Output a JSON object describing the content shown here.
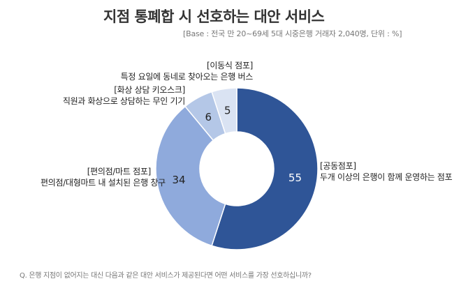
{
  "title": "지점 통폐합 시 선호하는 대안 서비스",
  "subtitle": "[Base : 전국 만 20~69세 5대 시중은행 거래자 2,040명, 단위 : %]",
  "question": "Q. 은행 지점이 없어지는 대신 다음과 같은 대안 서비스가 제공된다면 어떤 서비스를 가장 선호하십니까?",
  "chart_data": {
    "type": "pie",
    "donut": true,
    "slices": [
      {
        "category": "[공동점포]",
        "description": "두개 이상의 은행이 함께 운영하는 점포",
        "value": 55,
        "color": "#2f5597",
        "label_color": "#ffffff"
      },
      {
        "category": "[편의점/마트 점포]",
        "description": "편의점/대형마트 내 설치된 은행 창구",
        "value": 34,
        "color": "#8faadc",
        "label_color": "#222222"
      },
      {
        "category": "[화상 상담 키오스크]",
        "description": "직원과 화상으로 상담하는 무인 기기",
        "value": 6,
        "color": "#b4c7e7",
        "label_color": "#222222"
      },
      {
        "category": "[이동식 점포]",
        "description": "특정 요일에 동네로 찾아오는 은행 버스",
        "value": 5,
        "color": "#dae3f3",
        "label_color": "#222222"
      }
    ]
  }
}
